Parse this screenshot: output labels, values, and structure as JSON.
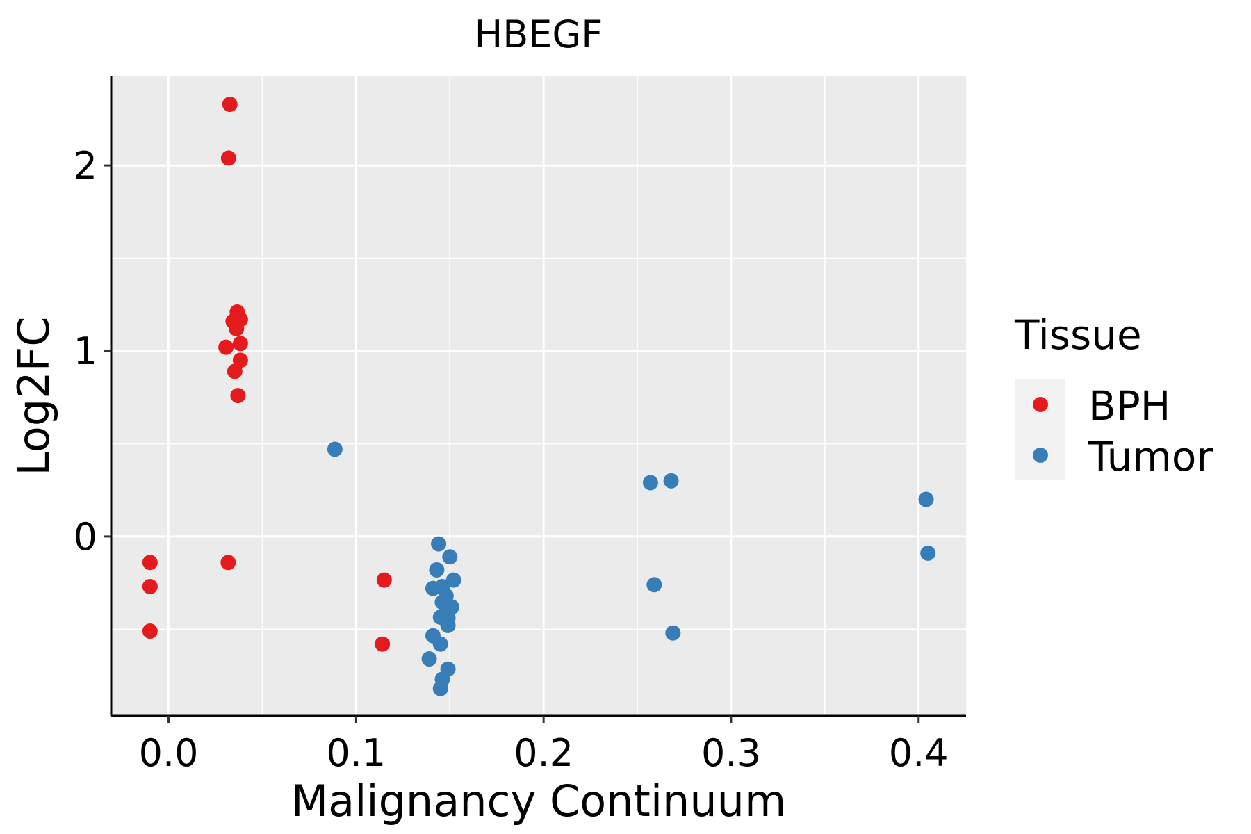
{
  "chart_data": {
    "type": "scatter",
    "title": "HBEGF",
    "xlabel": "Malignancy Continuum",
    "ylabel": "Log2FC",
    "xlim": [
      -0.0306,
      0.4253
    ],
    "ylim": [
      -0.967,
      2.48
    ],
    "xticks": [
      0.0,
      0.1,
      0.2,
      0.3,
      0.4
    ],
    "xtick_labels": [
      "0.0",
      "0.1",
      "0.2",
      "0.3",
      "0.4"
    ],
    "yticks": [
      0,
      1,
      2
    ],
    "ytick_labels": [
      "0",
      "1",
      "2"
    ],
    "grid": true,
    "legend": {
      "title": "Tissue",
      "placement": "right"
    },
    "series": [
      {
        "name": "BPH",
        "color": "#E41A1C",
        "points": [
          [
            0.0327,
            2.33
          ],
          [
            0.032,
            2.04
          ],
          [
            0.0366,
            1.21
          ],
          [
            0.0344,
            1.16
          ],
          [
            0.0383,
            1.17
          ],
          [
            0.0362,
            1.12
          ],
          [
            0.0306,
            1.02
          ],
          [
            0.0383,
            1.04
          ],
          [
            0.0383,
            0.95
          ],
          [
            0.0353,
            0.89
          ],
          [
            0.037,
            0.76
          ],
          [
            -0.0099,
            -0.14
          ],
          [
            -0.0099,
            -0.27
          ],
          [
            -0.0099,
            -0.51
          ],
          [
            0.0318,
            -0.14
          ],
          [
            0.115,
            -0.235
          ],
          [
            0.114,
            -0.58
          ]
        ]
      },
      {
        "name": "Tumor",
        "color": "#377EB8",
        "points": [
          [
            0.0887,
            0.47
          ],
          [
            0.257,
            0.29
          ],
          [
            0.268,
            0.3
          ],
          [
            0.404,
            0.2
          ],
          [
            0.405,
            -0.09
          ],
          [
            0.259,
            -0.26
          ],
          [
            0.269,
            -0.52
          ],
          [
            0.144,
            -0.04
          ],
          [
            0.15,
            -0.11
          ],
          [
            0.143,
            -0.18
          ],
          [
            0.152,
            -0.235
          ],
          [
            0.141,
            -0.28
          ],
          [
            0.146,
            -0.27
          ],
          [
            0.148,
            -0.32
          ],
          [
            0.146,
            -0.355
          ],
          [
            0.151,
            -0.38
          ],
          [
            0.148,
            -0.41
          ],
          [
            0.145,
            -0.435
          ],
          [
            0.149,
            -0.44
          ],
          [
            0.149,
            -0.48
          ],
          [
            0.141,
            -0.535
          ],
          [
            0.145,
            -0.58
          ],
          [
            0.139,
            -0.66
          ],
          [
            0.149,
            -0.715
          ],
          [
            0.146,
            -0.77
          ],
          [
            0.145,
            -0.82
          ]
        ]
      }
    ]
  }
}
